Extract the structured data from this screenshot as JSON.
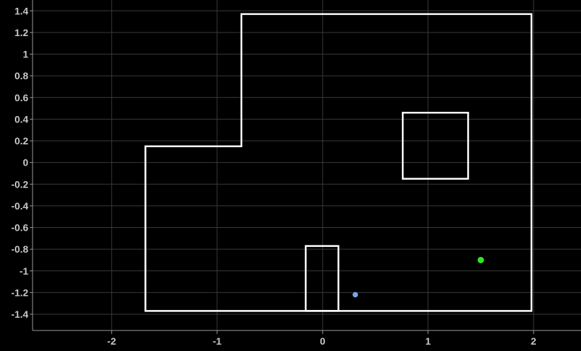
{
  "chart_data": {
    "type": "scatter",
    "title": "",
    "xlabel": "",
    "ylabel": "",
    "xlim": [
      -2.75,
      2.45
    ],
    "ylim": [
      -1.55,
      1.5
    ],
    "grid": true,
    "x_ticks": [
      -2,
      -1,
      0,
      1,
      2
    ],
    "y_ticks": [
      1.4,
      1.2,
      1,
      0.8,
      0.6,
      0.4,
      0.2,
      0,
      -0.2,
      -0.4,
      -0.6,
      -0.8,
      -1,
      -1.2,
      -1.4
    ],
    "shapes": [
      {
        "kind": "outer-boundary",
        "points": [
          [
            -1.68,
            0.15
          ],
          [
            -0.77,
            0.15
          ],
          [
            -0.77,
            1.37
          ],
          [
            1.98,
            1.37
          ],
          [
            1.98,
            -1.37
          ],
          [
            -1.68,
            -1.37
          ]
        ]
      },
      {
        "kind": "obstacle-square",
        "points": [
          [
            0.76,
            0.46
          ],
          [
            1.38,
            0.46
          ],
          [
            1.38,
            -0.15
          ],
          [
            0.76,
            -0.15
          ]
        ]
      },
      {
        "kind": "obstacle-rect",
        "points": [
          [
            -0.16,
            -0.77
          ],
          [
            0.15,
            -0.77
          ],
          [
            0.15,
            -1.37
          ],
          [
            -0.16,
            -1.37
          ]
        ]
      }
    ],
    "points": [
      {
        "kind": "start",
        "x": 0.31,
        "y": -1.22,
        "color": "#7aa6e8"
      },
      {
        "kind": "goal",
        "x": 1.5,
        "y": -0.9,
        "color": "#32e61e"
      }
    ],
    "colors": {
      "background": "#000000",
      "grid": "#3a3a3a",
      "shape": "#ffffff",
      "axis": "#9a9a9a",
      "tick_text": "#c8c8c8"
    }
  }
}
